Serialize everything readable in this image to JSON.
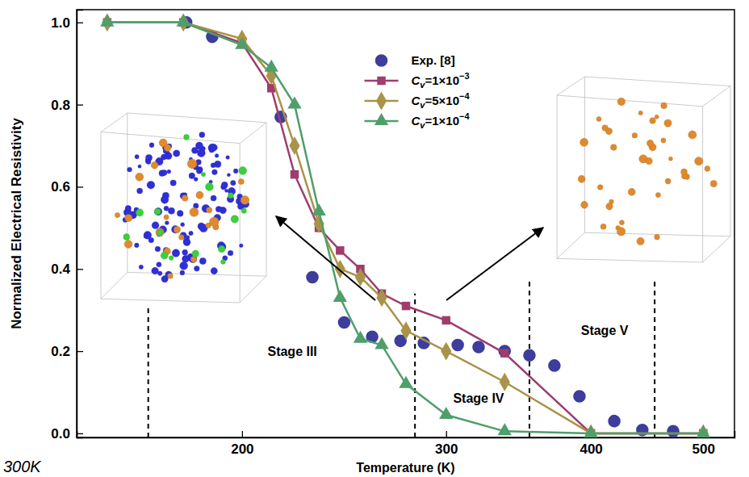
{
  "chart_data": {
    "type": "line",
    "xlabel": "Temperature (K)",
    "ylabel": "Normalized Electrical Resistivity",
    "log": "x",
    "xlim": [
      144,
      532
    ],
    "ylim": [
      -0.01,
      1.031
    ],
    "xticks": [
      200,
      300,
      400,
      500
    ],
    "yticks": [
      {
        "value": 0,
        "label": "0.0"
      },
      0.2,
      0.4,
      0.6,
      0.8,
      {
        "value": 1,
        "label": "1.0"
      }
    ],
    "legend": "top",
    "series": [
      {
        "name": "Exp. [8]",
        "color": "#3d3d9c",
        "marker": "circle",
        "line_style": "none",
        "x": [
          179,
          188.5,
          216,
          230,
          245,
          259,
          274,
          287,
          307,
          320,
          337,
          354,
          372,
          391,
          419,
          443,
          471
        ],
        "values": [
          1.0,
          0.965,
          0.77,
          0.38,
          0.27,
          0.235,
          0.225,
          0.22,
          0.215,
          0.21,
          0.2,
          0.19,
          0.165,
          0.09,
          0.03,
          0.008,
          0.005
        ]
      },
      {
        "name": "Cv=1×10−3",
        "color": "#9e3d6e",
        "marker": "square",
        "line_style": "solid",
        "x": [
          153,
          178,
          200,
          212,
          222,
          233,
          243,
          253,
          264,
          277,
          300,
          337,
          400,
          500
        ],
        "values": [
          1.0,
          1.0,
          0.95,
          0.84,
          0.63,
          0.5,
          0.445,
          0.4,
          0.34,
          0.31,
          0.275,
          0.195,
          0.0,
          0.0
        ]
      },
      {
        "name": "Cv=5×10−4",
        "color": "#a89348",
        "marker": "diamond",
        "line_style": "solid",
        "x": [
          153,
          178,
          200,
          212,
          222,
          233,
          243,
          253,
          264,
          277,
          300,
          337,
          400,
          500
        ],
        "values": [
          1.0,
          1.0,
          0.96,
          0.87,
          0.7,
          0.51,
          0.4,
          0.38,
          0.33,
          0.25,
          0.2,
          0.125,
          0.0,
          0.0
        ]
      },
      {
        "name": "Cv=1×10−4",
        "color": "#4f9e6b",
        "marker": "triangle",
        "line_style": "solid",
        "x": [
          153,
          178,
          200,
          212,
          222,
          233,
          243,
          253,
          264,
          277,
          300,
          337,
          400,
          500
        ],
        "values": [
          1.0,
          1.0,
          0.945,
          0.89,
          0.8,
          0.54,
          0.33,
          0.23,
          0.215,
          0.12,
          0.045,
          0.005,
          0.0,
          0.0
        ]
      }
    ],
    "stage_boundaries": [
      {
        "x": 166,
        "ymax": 0.31
      },
      {
        "x": 282,
        "ymax": 0.34
      },
      {
        "x": 354,
        "ymax": 0.37
      },
      {
        "x": 454,
        "ymax": 0.37
      }
    ],
    "annotations": [
      {
        "text": "Stage III",
        "x": 221,
        "y": 0.2
      },
      {
        "text": "Stage IV",
        "x": 320,
        "y": 0.085
      },
      {
        "text": "Stage V",
        "x": 411,
        "y": 0.25
      }
    ],
    "corner_text": "300K"
  }
}
